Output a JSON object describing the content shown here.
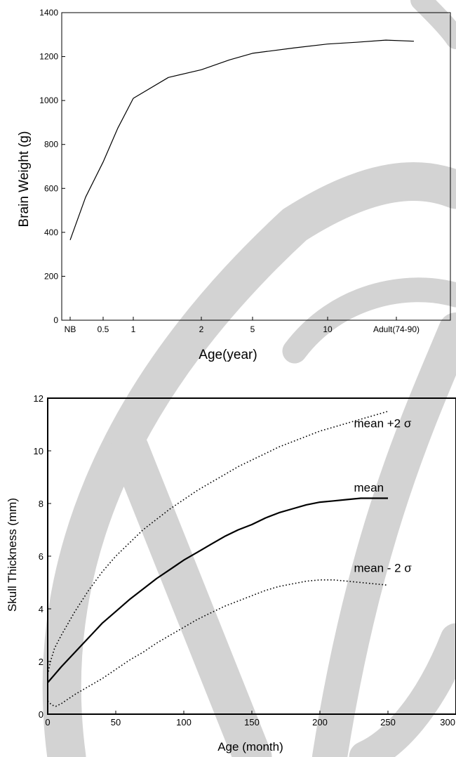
{
  "colors": {
    "background": "#ffffff",
    "watermark": "#d3d3d3",
    "ink": "#000000"
  },
  "chart_data": [
    {
      "type": "line",
      "title": "",
      "xlabel": "Age(year)",
      "ylabel": "Brain Weight (g)",
      "ylim": [
        0,
        1400
      ],
      "y_ticks": [
        "0",
        "200",
        "400",
        "600",
        "800",
        "1000",
        "1200",
        "1400"
      ],
      "x_ticks": [
        "NB",
        "0.5",
        "1",
        "2",
        "5",
        "10",
        "Adult(74-90)"
      ],
      "x_scale": "categorical (NB, 0.5, 1, 2, 5, 10, Adult)",
      "grid": false,
      "series": [
        {
          "style": "solid",
          "x": [
            "NB",
            "0.25",
            "0.5",
            "0.75",
            "1",
            "1.5",
            "2",
            "3",
            "5",
            "7",
            "10",
            "15",
            "Adult",
            "74-90"
          ],
          "y": [
            365,
            560,
            720,
            875,
            1010,
            1105,
            1140,
            1185,
            1215,
            1240,
            1257,
            1265,
            1275,
            1270
          ]
        }
      ]
    },
    {
      "type": "line",
      "title": "",
      "xlabel": "Age (month)",
      "ylabel": "Skull Thickness (mm)",
      "xlim": [
        0,
        300
      ],
      "ylim": [
        0,
        12
      ],
      "x_ticks": [
        "0",
        "50",
        "100",
        "150",
        "200",
        "250",
        "300"
      ],
      "y_ticks": [
        "0",
        "2",
        "4",
        "6",
        "8",
        "10",
        "12"
      ],
      "grid": false,
      "annotations": [
        {
          "text": "mean +2 σ",
          "x": 225,
          "y": 10.9
        },
        {
          "text": "mean",
          "x": 225,
          "y": 8.45
        },
        {
          "text": "mean - 2 σ",
          "x": 225,
          "y": 5.4
        }
      ],
      "series": [
        {
          "name": "mean +2 σ",
          "style": "dotted",
          "x": [
            0,
            2,
            5,
            10,
            20,
            30,
            40,
            50,
            60,
            70,
            80,
            90,
            100,
            110,
            120,
            130,
            140,
            150,
            160,
            170,
            180,
            190,
            200,
            210,
            220,
            230,
            240,
            250
          ],
          "y": [
            1.5,
            2.0,
            2.5,
            3.0,
            3.9,
            4.7,
            5.4,
            6.0,
            6.5,
            7.0,
            7.4,
            7.8,
            8.15,
            8.5,
            8.8,
            9.1,
            9.4,
            9.65,
            9.9,
            10.15,
            10.35,
            10.55,
            10.75,
            10.9,
            11.05,
            11.2,
            11.35,
            11.5
          ]
        },
        {
          "name": "mean",
          "style": "solid",
          "x": [
            0,
            5,
            10,
            20,
            30,
            40,
            50,
            60,
            70,
            80,
            90,
            100,
            110,
            120,
            130,
            140,
            150,
            160,
            170,
            180,
            190,
            200,
            210,
            220,
            230,
            240,
            250
          ],
          "y": [
            1.2,
            1.5,
            1.8,
            2.35,
            2.9,
            3.45,
            3.9,
            4.35,
            4.75,
            5.15,
            5.5,
            5.85,
            6.15,
            6.45,
            6.75,
            7.0,
            7.2,
            7.45,
            7.65,
            7.8,
            7.95,
            8.05,
            8.1,
            8.15,
            8.2,
            8.2,
            8.2
          ]
        },
        {
          "name": "mean - 2 σ",
          "style": "dotted",
          "x": [
            0,
            3,
            6,
            10,
            20,
            30,
            40,
            50,
            60,
            70,
            80,
            90,
            100,
            110,
            120,
            130,
            140,
            150,
            160,
            170,
            180,
            190,
            200,
            210,
            220,
            230,
            240,
            250
          ],
          "y": [
            0.5,
            0.35,
            0.3,
            0.4,
            0.75,
            1.05,
            1.35,
            1.7,
            2.05,
            2.35,
            2.7,
            3.0,
            3.3,
            3.6,
            3.85,
            4.1,
            4.3,
            4.5,
            4.7,
            4.85,
            4.95,
            5.05,
            5.1,
            5.1,
            5.05,
            5.0,
            4.95,
            4.9
          ]
        }
      ]
    }
  ]
}
